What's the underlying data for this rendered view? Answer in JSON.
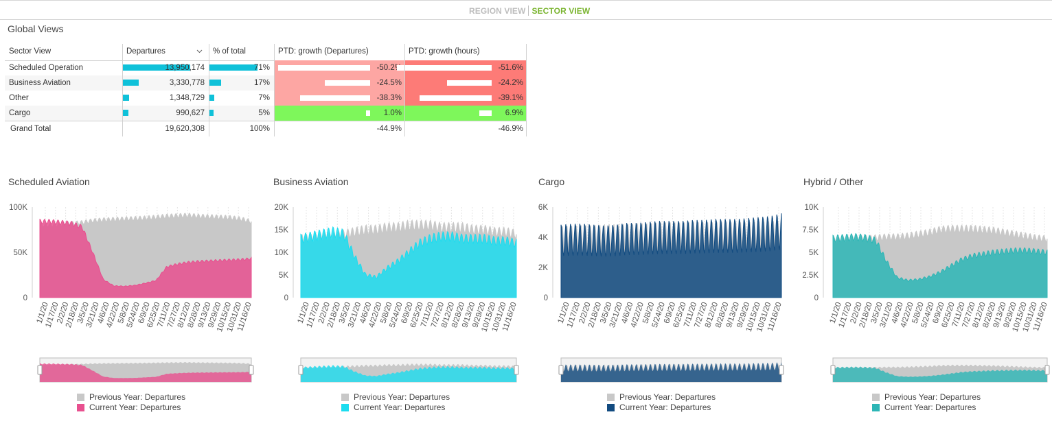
{
  "header": {
    "tabs": [
      {
        "label": "REGION VIEW",
        "active": false
      },
      {
        "label": "SECTOR VIEW",
        "active": true
      }
    ]
  },
  "page_title": "Global Views",
  "table": {
    "columns": [
      "Sector View",
      "Departures",
      "% of total",
      "PTD: growth (Departures)",
      "PTD: growth (hours)"
    ],
    "sort_icon": "chevron-down-icon",
    "rows": [
      {
        "sector": "Scheduled Operation",
        "departures": "13,950,174",
        "departures_value": 13950174,
        "pct": "71%",
        "pct_value": 71,
        "growth_dep": "-50.2%",
        "growth_dep_value": -50.2,
        "growth_hours": "-51.6%",
        "growth_hours_value": -51.6
      },
      {
        "sector": "Business Aviation",
        "departures": "3,330,778",
        "departures_value": 3330778,
        "pct": "17%",
        "pct_value": 17,
        "growth_dep": "-24.5%",
        "growth_dep_value": -24.5,
        "growth_hours": "-24.2%",
        "growth_hours_value": -24.2
      },
      {
        "sector": "Other",
        "departures": "1,348,729",
        "departures_value": 1348729,
        "pct": "7%",
        "pct_value": 7,
        "growth_dep": "-38.3%",
        "growth_dep_value": -38.3,
        "growth_hours": "-39.1%",
        "growth_hours_value": -39.1
      },
      {
        "sector": "Cargo",
        "departures": "990,627",
        "departures_value": 990627,
        "pct": "5%",
        "pct_value": 5,
        "growth_dep": "1.0%",
        "growth_dep_value": 1.0,
        "growth_hours": "6.9%",
        "growth_hours_value": 6.9
      }
    ],
    "total": {
      "label": "Grand Total",
      "departures": "19,620,308",
      "pct": "100%",
      "growth_dep": "-44.9%",
      "growth_hours": "-46.9%"
    },
    "colors": {
      "bar": "#0fc1d9",
      "neg_light": "#fda6a3",
      "neg_strong": "#fd7b77",
      "pos": "#7ef75b"
    }
  },
  "chart_data": [
    {
      "type": "area",
      "title": "Scheduled Aviation",
      "x_labels": [
        "1/1/20",
        "1/17/20",
        "2/2/20",
        "2/18/20",
        "3/5/20",
        "3/21/20",
        "4/6/20",
        "4/22/20",
        "5/8/20",
        "5/24/20",
        "6/9/20",
        "6/25/20",
        "7/11/20",
        "7/27/20",
        "8/12/20",
        "8/28/20",
        "9/13/20",
        "9/29/20",
        "10/15/20",
        "10/31/20",
        "11/16/20"
      ],
      "y_ticks": [
        "0",
        "50K",
        "100K"
      ],
      "ylim": [
        0,
        100000
      ],
      "series": [
        {
          "name": "Previous Year: Departures",
          "color": "#c8c8c8",
          "values": [
            80000,
            80000,
            81000,
            82000,
            83000,
            85000,
            86000,
            86500,
            87000,
            87500,
            88000,
            89000,
            90000,
            90500,
            91000,
            90000,
            89500,
            89000,
            88500,
            87000,
            84000
          ]
        },
        {
          "name": "Current Year: Departures",
          "color": "#e8508f",
          "values": [
            84000,
            84000,
            83000,
            82000,
            78000,
            50000,
            20000,
            13000,
            12500,
            13500,
            16000,
            19000,
            34000,
            37000,
            39000,
            40000,
            40500,
            41000,
            41500,
            42000,
            43000
          ]
        }
      ],
      "legend": "bottom",
      "grid": true
    },
    {
      "type": "area",
      "title": "Business Aviation",
      "x_labels": [
        "1/1/20",
        "1/17/20",
        "2/2/20",
        "2/18/20",
        "3/5/20",
        "3/21/20",
        "4/6/20",
        "4/22/20",
        "5/8/20",
        "5/24/20",
        "6/9/20",
        "6/25/20",
        "7/11/20",
        "7/27/20",
        "8/12/20",
        "8/28/20",
        "9/13/20",
        "9/29/20",
        "10/15/20",
        "10/31/20",
        "11/16/20"
      ],
      "y_ticks": [
        "0",
        "5K",
        "10K",
        "15K",
        "20K"
      ],
      "ylim": [
        0,
        20000
      ],
      "series": [
        {
          "name": "Previous Year: Departures",
          "color": "#c8c8c8",
          "values": [
            13000,
            13000,
            13500,
            13500,
            14000,
            14500,
            15000,
            15000,
            15500,
            15500,
            16000,
            16000,
            16000,
            15500,
            15500,
            15500,
            15000,
            15000,
            14500,
            14500,
            14000
          ]
        },
        {
          "name": "Current Year: Departures",
          "color": "#1cdcef",
          "values": [
            13000,
            13500,
            14000,
            14500,
            14000,
            9000,
            5000,
            4500,
            6500,
            8000,
            10000,
            12000,
            13000,
            13500,
            13500,
            13000,
            13000,
            13000,
            12500,
            12500,
            12000
          ]
        }
      ],
      "legend": "bottom",
      "grid": true
    },
    {
      "type": "area",
      "title": "Cargo",
      "x_labels": [
        "1/1/20",
        "1/17/20",
        "2/2/20",
        "2/18/20",
        "3/5/20",
        "3/21/20",
        "4/6/20",
        "4/22/20",
        "5/8/20",
        "5/24/20",
        "6/9/20",
        "6/25/20",
        "7/11/20",
        "7/27/20",
        "8/12/20",
        "8/28/20",
        "9/13/20",
        "9/29/20",
        "10/15/20",
        "10/31/20",
        "11/16/20"
      ],
      "y_ticks": [
        "0",
        "2K",
        "4K",
        "6K"
      ],
      "ylim": [
        0,
        6000
      ],
      "series": [
        {
          "name": "Previous Year: Departures",
          "color": "#c8c8c8",
          "values": [
            3800,
            3800,
            3850,
            3850,
            3900,
            3900,
            3900,
            3950,
            3950,
            4000,
            4000,
            4000,
            4000,
            4000,
            4000,
            4000,
            4000,
            4000,
            4050,
            4050,
            4100
          ]
        },
        {
          "name": "Current Year: Departures",
          "color": "#124b80",
          "values": [
            3800,
            3850,
            3850,
            3800,
            3750,
            3800,
            3900,
            3900,
            3950,
            4000,
            4000,
            4000,
            4050,
            4050,
            4100,
            4100,
            4100,
            4150,
            4200,
            4250,
            4400
          ]
        }
      ],
      "legend": "bottom",
      "grid": true
    },
    {
      "type": "area",
      "title": "Hybrid / Other",
      "x_labels": [
        "1/1/20",
        "1/17/20",
        "2/2/20",
        "2/18/20",
        "3/5/20",
        "3/21/20",
        "4/6/20",
        "4/22/20",
        "5/8/20",
        "5/24/20",
        "6/9/20",
        "6/25/20",
        "7/11/20",
        "7/27/20",
        "8/12/20",
        "8/28/20",
        "9/13/20",
        "9/29/20",
        "10/15/20",
        "10/31/20",
        "11/16/20"
      ],
      "y_ticks": [
        "0",
        "2.5K",
        "5K",
        "7.5K",
        "10K"
      ],
      "ylim": [
        0,
        10000
      ],
      "series": [
        {
          "name": "Previous Year: Departures",
          "color": "#c8c8c8",
          "values": [
            6300,
            6400,
            6500,
            6500,
            6600,
            6700,
            6700,
            6800,
            7000,
            7200,
            7500,
            7600,
            7600,
            7600,
            7500,
            7400,
            7200,
            7000,
            6800,
            6600,
            6500
          ]
        },
        {
          "name": "Current Year: Departures",
          "color": "#2db6b6",
          "values": [
            6500,
            6600,
            6700,
            6600,
            6300,
            4000,
            2200,
            1900,
            2000,
            2300,
            2800,
            3500,
            4200,
            4600,
            4800,
            5000,
            5100,
            5200,
            5200,
            5100,
            5000
          ]
        }
      ],
      "legend": "bottom",
      "grid": true
    }
  ]
}
